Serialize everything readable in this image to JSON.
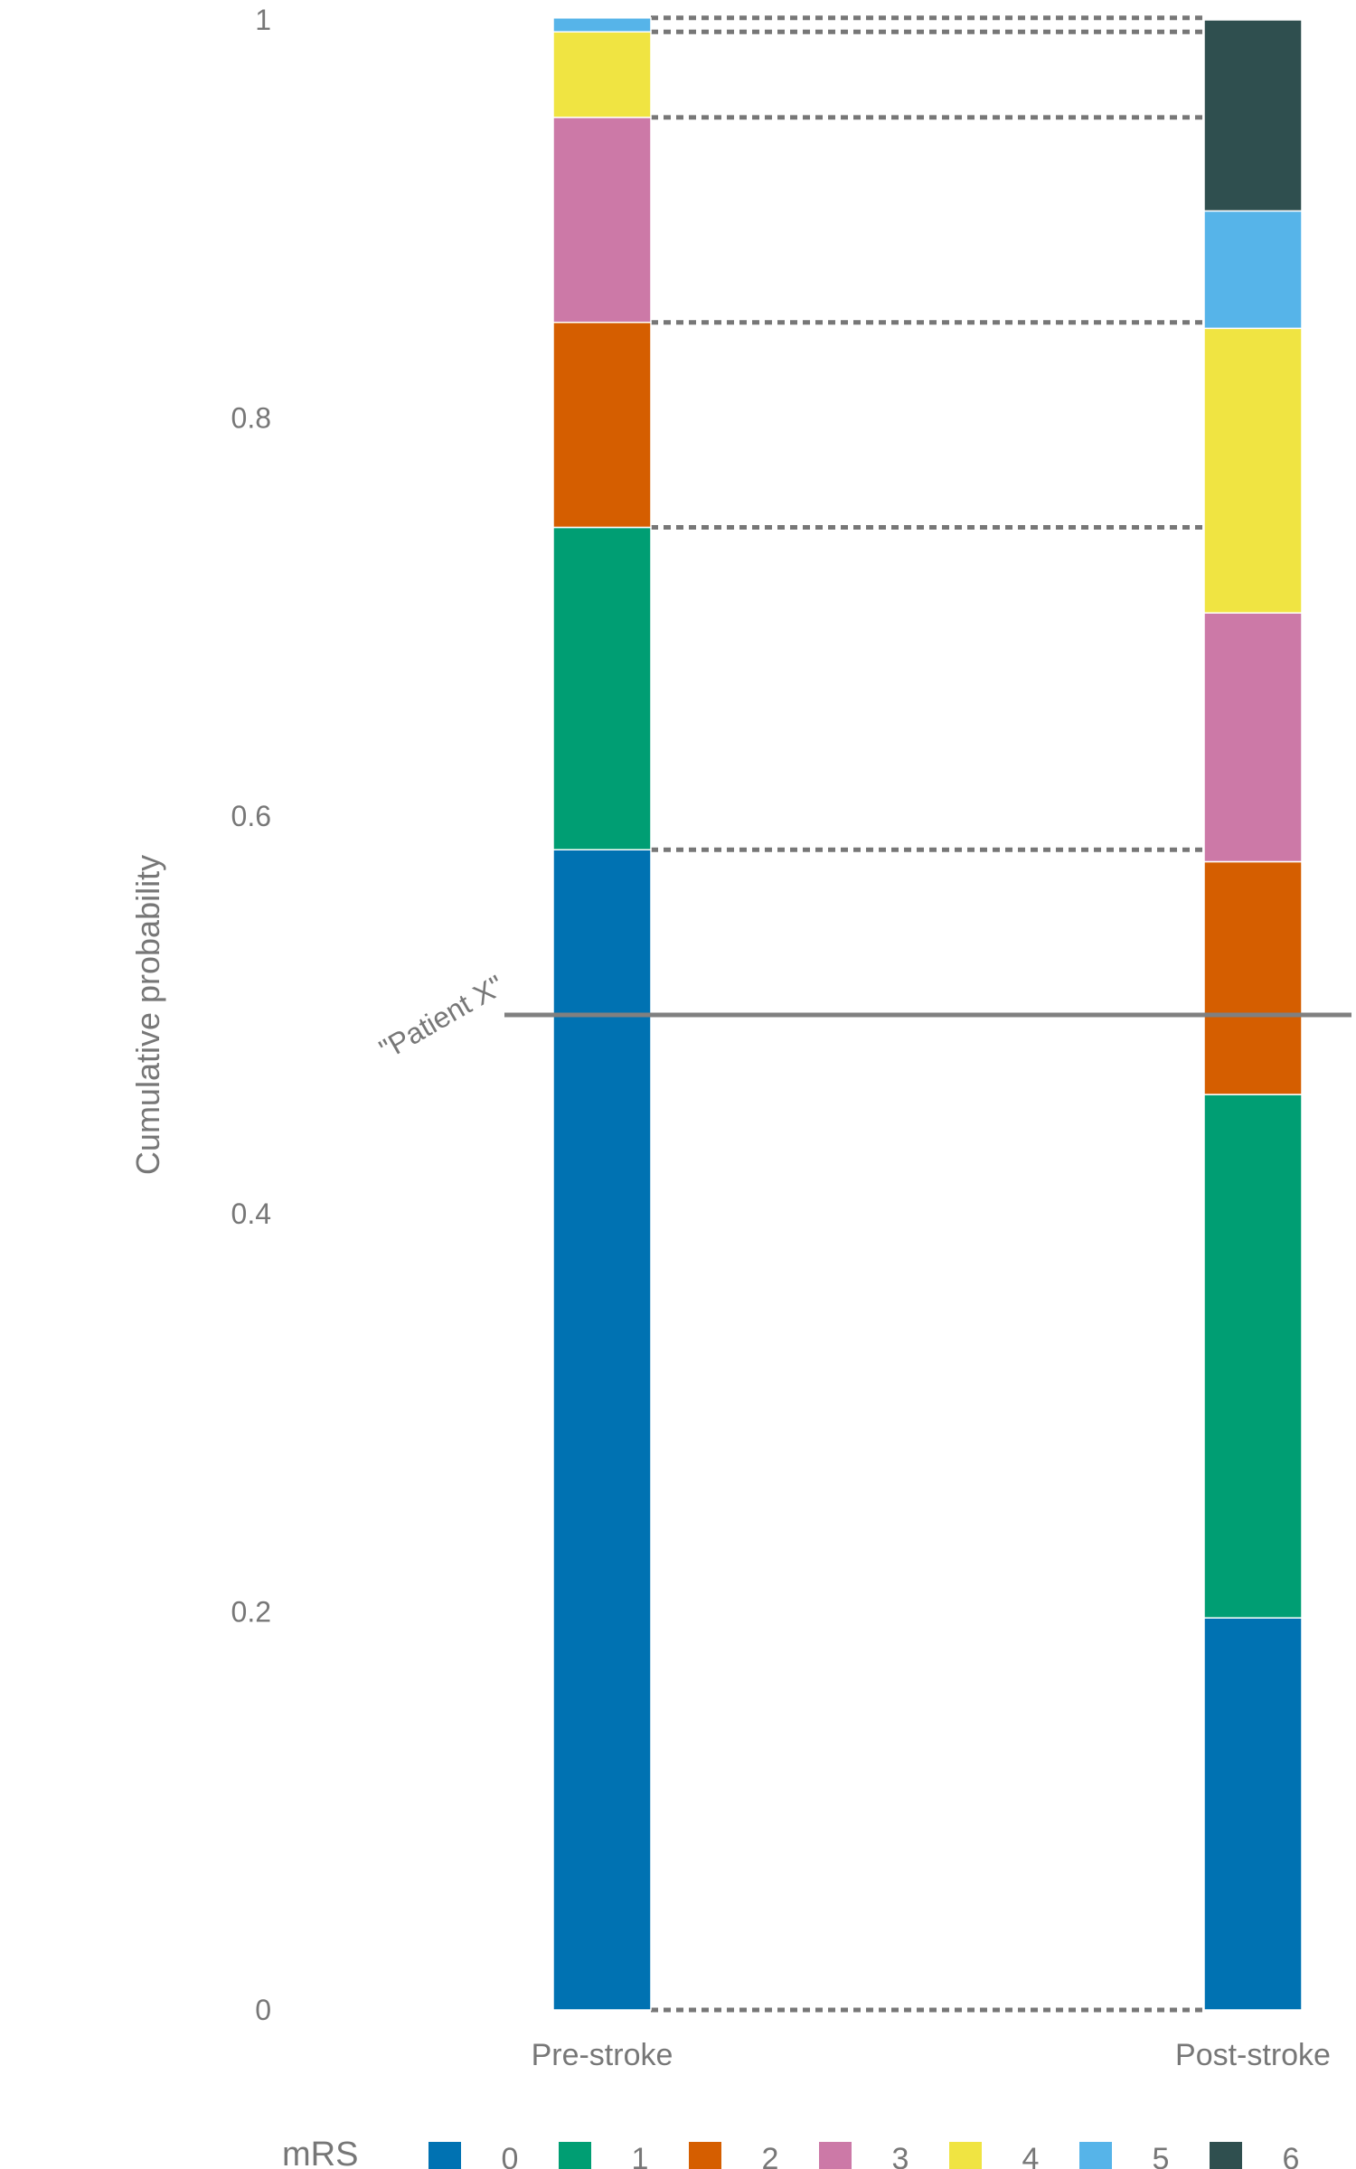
{
  "chart_data": {
    "type": "bar",
    "stacked": true,
    "ylabel": "Cumulative probability",
    "ylim": [
      0,
      1
    ],
    "yticks": [
      {
        "value": 0,
        "label": "0"
      },
      {
        "value": 0.2,
        "label": "0.2"
      },
      {
        "value": 0.4,
        "label": "0.4"
      },
      {
        "value": 0.6,
        "label": "0.6"
      },
      {
        "value": 0.8,
        "label": "0.8"
      },
      {
        "value": 1,
        "label": "1"
      }
    ],
    "categories": [
      "Pre-stroke",
      "Post-stroke"
    ],
    "series": [
      {
        "name": "0",
        "color": "#0072B2",
        "values": [
          0.583,
          0.197
        ]
      },
      {
        "name": "1",
        "color": "#009E73",
        "values": [
          0.162,
          0.263
        ]
      },
      {
        "name": "2",
        "color": "#D55E00",
        "values": [
          0.103,
          0.117
        ]
      },
      {
        "name": "3",
        "color": "#CC79A7",
        "values": [
          0.103,
          0.125
        ]
      },
      {
        "name": "4",
        "color": "#F0E442",
        "values": [
          0.043,
          0.143
        ]
      },
      {
        "name": "5",
        "color": "#56B4E9",
        "values": [
          0.007,
          0.059
        ]
      },
      {
        "name": "6",
        "color": "#2F4F4F",
        "values": [
          0.0,
          0.096
        ]
      }
    ],
    "reference_line": {
      "value": 0.5,
      "label": "\"Patient X\"",
      "color": "#808080"
    },
    "connector_lines": "dotted",
    "grid": false,
    "legend": {
      "title": "mRS",
      "placement": "bottom"
    }
  }
}
